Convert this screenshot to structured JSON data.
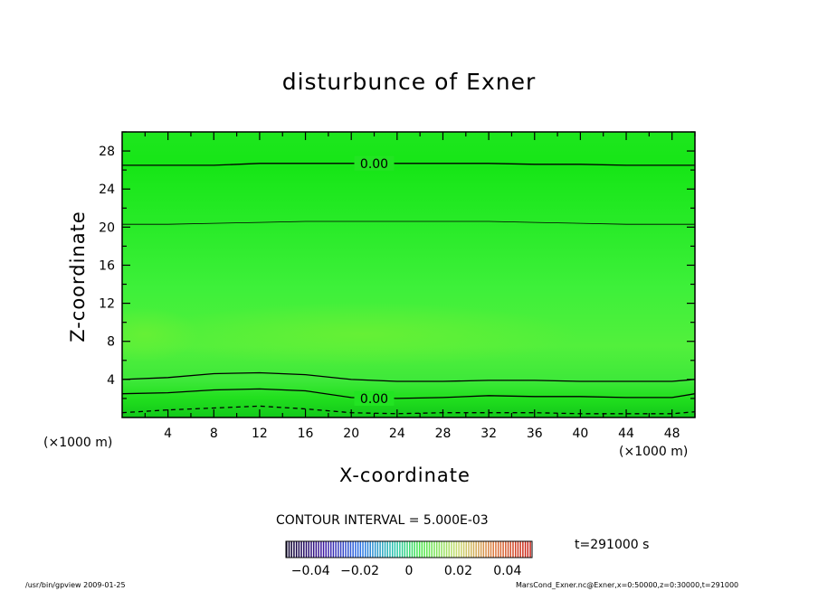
{
  "chart_data": {
    "type": "heatmap",
    "title": "disturbunce of Exner",
    "xlabel": "X-coordinate",
    "ylabel": "Z-coordinate",
    "x_unit": "(×1000 m)",
    "x_unit_right": "(×1000 m)",
    "xlim": [
      0,
      50
    ],
    "ylim": [
      0,
      30
    ],
    "x_ticks": [
      4,
      8,
      12,
      16,
      20,
      24,
      28,
      32,
      36,
      40,
      44,
      48
    ],
    "y_ticks": [
      4,
      8,
      12,
      16,
      20,
      24,
      28
    ],
    "contour_interval": "CONTOUR INTERVAL = 5.000E-03",
    "contour_labels": [
      "0.00",
      "0.00"
    ],
    "time_label": "t=291000 s",
    "colorbar_range": [
      -0.05,
      0.05
    ],
    "colorbar_ticks": [
      "−0.04",
      "−0.02",
      "0",
      "0.02",
      "0.04"
    ],
    "field_range_visible": [
      -0.004,
      0.008
    ],
    "contours": [
      {
        "level": 0.0,
        "style": "solid",
        "z": [
          26.5,
          26.5,
          26.5,
          26.7,
          26.7,
          26.7,
          26.7,
          26.7,
          26.7,
          26.6,
          26.6,
          26.5,
          26.5,
          26.5
        ]
      },
      {
        "level": 0.0,
        "style": "thin",
        "z": [
          20.3,
          20.3,
          20.4,
          20.5,
          20.6,
          20.6,
          20.6,
          20.6,
          20.6,
          20.5,
          20.4,
          20.3,
          20.3,
          20.3
        ]
      },
      {
        "level": 0.005,
        "style": "solid",
        "z": [
          4.0,
          4.2,
          4.6,
          4.7,
          4.5,
          4.0,
          3.8,
          3.8,
          3.9,
          3.9,
          3.8,
          3.8,
          3.8,
          4.0
        ]
      },
      {
        "level": 0.0,
        "style": "solid",
        "z": [
          2.5,
          2.6,
          2.9,
          3.0,
          2.8,
          2.1,
          2.0,
          2.1,
          2.3,
          2.2,
          2.2,
          2.1,
          2.1,
          2.5
        ]
      },
      {
        "level": -0.005,
        "style": "dashed",
        "z": [
          0.5,
          0.8,
          1.0,
          1.2,
          0.9,
          0.5,
          0.4,
          0.5,
          0.5,
          0.5,
          0.4,
          0.4,
          0.4,
          0.6
        ]
      }
    ],
    "contour_x": [
      0,
      4,
      8,
      12,
      16,
      20,
      24,
      28,
      32,
      36,
      40,
      44,
      48,
      50
    ]
  },
  "footer_left": "/usr/bin/gpview   2009-01-25",
  "footer_right": "MarsCond_Exner.nc@Exner,x=0:50000,z=0:30000,t=291000"
}
